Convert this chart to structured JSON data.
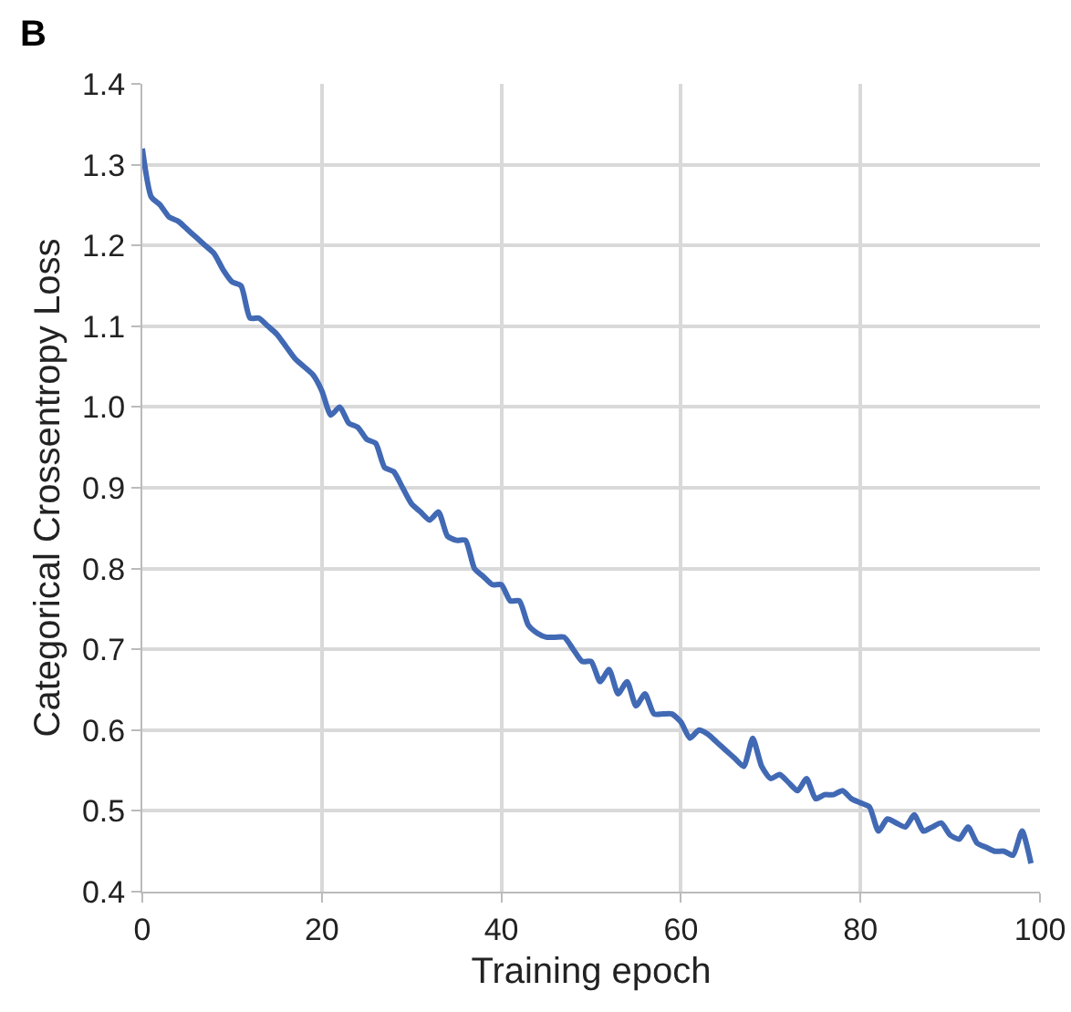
{
  "chart_data": {
    "type": "line",
    "xlabel": "Training epoch",
    "ylabel": "Categorical Crossentropy Loss",
    "annotations": [
      "B"
    ],
    "x": [
      0,
      1,
      2,
      3,
      4,
      5,
      6,
      7,
      8,
      9,
      10,
      11,
      12,
      13,
      14,
      15,
      16,
      17,
      18,
      19,
      20,
      21,
      22,
      23,
      24,
      25,
      26,
      27,
      28,
      29,
      30,
      31,
      32,
      33,
      34,
      35,
      36,
      37,
      38,
      39,
      40,
      41,
      42,
      43,
      44,
      45,
      46,
      47,
      48,
      49,
      50,
      51,
      52,
      53,
      54,
      55,
      56,
      57,
      58,
      59,
      60,
      61,
      62,
      63,
      64,
      65,
      66,
      67,
      68,
      69,
      70,
      71,
      72,
      73,
      74,
      75,
      76,
      77,
      78,
      79,
      80,
      81,
      82,
      83,
      84,
      85,
      86,
      87,
      88,
      89,
      90,
      91,
      92,
      93,
      94,
      95,
      96,
      97,
      98,
      99
    ],
    "series": [
      {
        "color": "#4169b4",
        "values": [
          1.32,
          1.26,
          1.25,
          1.235,
          1.23,
          1.22,
          1.21,
          1.2,
          1.19,
          1.17,
          1.155,
          1.15,
          1.11,
          1.11,
          1.1,
          1.09,
          1.075,
          1.06,
          1.05,
          1.04,
          1.02,
          0.99,
          1.0,
          0.98,
          0.975,
          0.96,
          0.955,
          0.925,
          0.92,
          0.9,
          0.88,
          0.87,
          0.86,
          0.87,
          0.84,
          0.835,
          0.835,
          0.8,
          0.79,
          0.78,
          0.78,
          0.76,
          0.76,
          0.73,
          0.72,
          0.715,
          0.715,
          0.715,
          0.7,
          0.685,
          0.685,
          0.66,
          0.675,
          0.645,
          0.66,
          0.63,
          0.645,
          0.62,
          0.62,
          0.62,
          0.61,
          0.59,
          0.6,
          0.595,
          0.585,
          0.575,
          0.565,
          0.555,
          0.59,
          0.555,
          0.54,
          0.545,
          0.535,
          0.525,
          0.54,
          0.515,
          0.52,
          0.52,
          0.525,
          0.515,
          0.51,
          0.505,
          0.475,
          0.49,
          0.485,
          0.48,
          0.495,
          0.475,
          0.48,
          0.485,
          0.47,
          0.465,
          0.48,
          0.46,
          0.455,
          0.45,
          0.45,
          0.445,
          0.475,
          0.435
        ]
      }
    ],
    "xlim": [
      0,
      100
    ],
    "xticks": [
      0,
      20,
      40,
      60,
      80,
      100
    ],
    "ylim": [
      0.4,
      1.4
    ],
    "yticks": [
      {
        "value": 0.4,
        "label": "0.4"
      },
      {
        "value": 0.5,
        "label": "0.5"
      },
      {
        "value": 0.6,
        "label": "0.6"
      },
      {
        "value": 0.7,
        "label": "0.7"
      },
      {
        "value": 0.8,
        "label": "0.8"
      },
      {
        "value": 0.9,
        "label": "0.9"
      },
      {
        "value": 1.0,
        "label": "1.0"
      },
      {
        "value": 1.1,
        "label": "1.1"
      },
      {
        "value": 1.2,
        "label": "1.2"
      },
      {
        "value": 1.3,
        "label": "1.3"
      },
      {
        "value": 1.4,
        "label": "1.4"
      }
    ],
    "grid": true,
    "marker": "none",
    "line_style": "solid"
  }
}
